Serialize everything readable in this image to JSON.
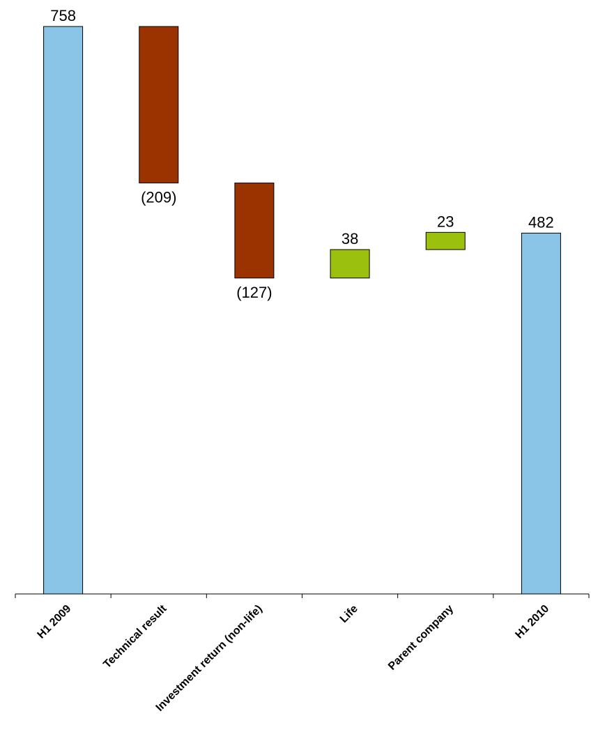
{
  "chart_data": {
    "type": "bar",
    "subtype": "waterfall",
    "title": "",
    "xlabel": "",
    "ylabel": "",
    "categories": [
      "H1 2009",
      "Technical result",
      "Investment return (non-life)",
      "Life",
      "Parent company",
      "H1 2010"
    ],
    "values": [
      758,
      -209,
      -127,
      38,
      23,
      482
    ],
    "kinds": [
      "total",
      "delta",
      "delta",
      "delta",
      "delta",
      "total"
    ],
    "data_labels": [
      "758",
      "(209)",
      "(127)",
      "38",
      "23",
      "482"
    ],
    "ylim": [
      0,
      758
    ],
    "grid": false,
    "legend": "none",
    "colors": {
      "total": "#8AC4E6",
      "decrease": "#9B3300",
      "increase": "#9BC00E"
    }
  }
}
